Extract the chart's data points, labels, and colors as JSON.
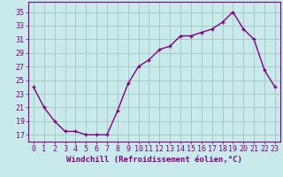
{
  "x": [
    0,
    1,
    2,
    3,
    4,
    5,
    6,
    7,
    8,
    9,
    10,
    11,
    12,
    13,
    14,
    15,
    16,
    17,
    18,
    19,
    20,
    21,
    22,
    23
  ],
  "y": [
    24,
    21,
    19,
    17.5,
    17.5,
    17,
    17,
    17,
    20.5,
    24.5,
    27,
    28,
    29.5,
    30,
    31.5,
    31.5,
    32,
    32.5,
    33.5,
    35,
    32.5,
    31,
    26.5,
    24
  ],
  "line_color": "#800080",
  "marker": "+",
  "bg_color": "#c8eaea",
  "grid_color": "#aacaca",
  "xlabel": "Windchill (Refroidissement éolien,°C)",
  "yticks": [
    17,
    19,
    21,
    23,
    25,
    27,
    29,
    31,
    33,
    35
  ],
  "xticks": [
    0,
    1,
    2,
    3,
    4,
    5,
    6,
    7,
    8,
    9,
    10,
    11,
    12,
    13,
    14,
    15,
    16,
    17,
    18,
    19,
    20,
    21,
    22,
    23
  ],
  "ylim": [
    16.0,
    36.5
  ],
  "xlim": [
    -0.5,
    23.5
  ],
  "xlabel_fontsize": 6.5,
  "tick_fontsize": 6.0,
  "marker_size": 3.5,
  "line_width": 1.0
}
